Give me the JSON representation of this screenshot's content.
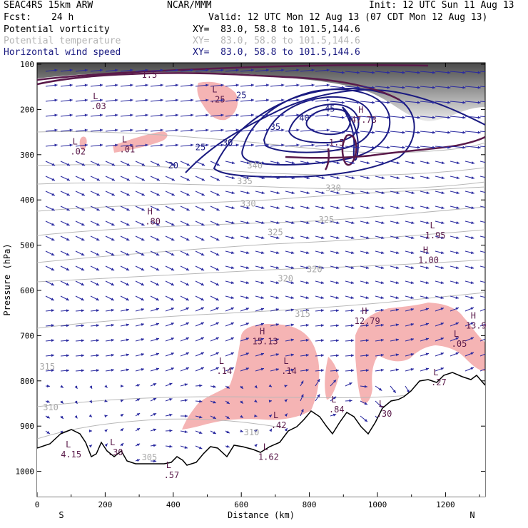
{
  "header": {
    "model": "SEAC4RS 15km ARW",
    "agency": "NCAR/MMM",
    "init": "Init: 12 UTC Sun 11 Aug 13",
    "fcst_label": "Fcst:",
    "fcst_value": "24 h",
    "valid": "Valid: 12 UTC Mon 12 Aug 13 (07 CDT Mon 12 Aug 13)"
  },
  "legend": [
    {
      "name": "Potential vorticity",
      "xy": "XY=  83.0, 58.8 to 101.5,144.6",
      "color": "#000000",
      "xy_color": "#000000"
    },
    {
      "name": "Potential temperature",
      "xy": "XY=  83.0, 58.8 to 101.5,144.6",
      "color": "#b4b4b4",
      "xy_color": "#b4b4b4"
    },
    {
      "name": "Horizontal wind speed",
      "xy": "XY=  83.0, 58.8 to 101.5,144.6",
      "color": "#1a1a80",
      "xy_color": "#1a1a80"
    }
  ],
  "colors": {
    "pv_fill": "#f5b4b4",
    "pv_line": "#5a1a4a",
    "theta_line": "#b8b8b8",
    "wind_line": "#1a1a80",
    "vector": "#2a2aa0",
    "terrain_shade": "#555555"
  },
  "chart_data": {
    "type": "cross-section",
    "ylabel": "Pressure (hPa)",
    "xlabel": "Distance (km)",
    "x_ticks": [
      "0",
      "200",
      "400",
      "600",
      "800",
      "1000",
      "1200"
    ],
    "y_ticks": [
      "100",
      "200",
      "300",
      "400",
      "500",
      "600",
      "700",
      "800",
      "900",
      "1000"
    ],
    "xlim": [
      0,
      1320
    ],
    "ylim": [
      1050,
      100
    ],
    "left_end": "S",
    "right_end": "N",
    "wind_speed_contours": [
      {
        "label": "20",
        "x": 400,
        "p": 330
      },
      {
        "label": "25",
        "x": 480,
        "p": 290
      },
      {
        "label": "25",
        "x": 600,
        "p": 175
      },
      {
        "label": "30",
        "x": 560,
        "p": 280
      },
      {
        "label": "35",
        "x": 700,
        "p": 245
      },
      {
        "label": "40",
        "x": 785,
        "p": 225
      },
      {
        "label": "45",
        "x": 860,
        "p": 205
      }
    ],
    "theta_contours": [
      {
        "label": "340",
        "x": 640,
        "p": 330
      },
      {
        "label": "335",
        "x": 610,
        "p": 365
      },
      {
        "label": "330",
        "x": 870,
        "p": 380
      },
      {
        "label": "330",
        "x": 620,
        "p": 415
      },
      {
        "label": "325",
        "x": 850,
        "p": 450
      },
      {
        "label": "325",
        "x": 700,
        "p": 478
      },
      {
        "label": "320",
        "x": 815,
        "p": 560
      },
      {
        "label": "320",
        "x": 730,
        "p": 580
      },
      {
        "label": "315",
        "x": 780,
        "p": 658
      },
      {
        "label": "315",
        "x": 30,
        "p": 775
      },
      {
        "label": "310",
        "x": 40,
        "p": 865
      },
      {
        "label": "310",
        "x": 630,
        "p": 920
      },
      {
        "label": "305",
        "x": 330,
        "p": 975
      }
    ],
    "pv_contour_labels": [
      {
        "label": "1.5",
        "x": 330,
        "p": 130
      },
      {
        "label": "1.5",
        "x": 880,
        "p": 280
      }
    ],
    "extrema": [
      {
        "kind": "L",
        "value": ".03",
        "x": 180,
        "p": 190
      },
      {
        "kind": "L",
        "value": ".25",
        "x": 530,
        "p": 175
      },
      {
        "kind": "L",
        "value": ".02",
        "x": 120,
        "p": 290
      },
      {
        "kind": "L",
        "value": ".01",
        "x": 265,
        "p": 285
      },
      {
        "kind": "H",
        "value": ".80",
        "x": 340,
        "p": 445
      },
      {
        "kind": "H",
        "value": "47.73",
        "x": 960,
        "p": 220
      },
      {
        "kind": "L",
        "value": "1.95",
        "x": 1170,
        "p": 475
      },
      {
        "kind": "H",
        "value": "1.00",
        "x": 1150,
        "p": 530
      },
      {
        "kind": "H",
        "value": "12.79",
        "x": 970,
        "p": 665
      },
      {
        "kind": "H",
        "value": "15.13",
        "x": 670,
        "p": 710
      },
      {
        "kind": "H",
        "value": "13.9",
        "x": 1290,
        "p": 675
      },
      {
        "kind": "L",
        "value": ".05",
        "x": 1240,
        "p": 715
      },
      {
        "kind": "L",
        "value": ".14",
        "x": 550,
        "p": 775
      },
      {
        "kind": "L",
        "value": ".14",
        "x": 740,
        "p": 775
      },
      {
        "kind": "L",
        "value": ".27",
        "x": 1180,
        "p": 800
      },
      {
        "kind": "L",
        "value": ".84",
        "x": 880,
        "p": 860
      },
      {
        "kind": "L",
        "value": ".30",
        "x": 1020,
        "p": 870
      },
      {
        "kind": "L",
        "value": ".42",
        "x": 710,
        "p": 895
      },
      {
        "kind": "L",
        "value": "4.15",
        "x": 100,
        "p": 960
      },
      {
        "kind": "L",
        "value": ".30",
        "x": 230,
        "p": 955
      },
      {
        "kind": "L",
        "value": "1.62",
        "x": 680,
        "p": 965
      },
      {
        "kind": "L",
        "value": ".57",
        "x": 395,
        "p": 1005
      }
    ]
  }
}
